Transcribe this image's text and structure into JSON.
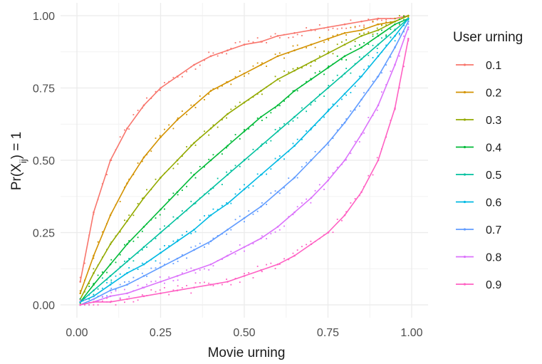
{
  "chart_data": {
    "type": "line",
    "xlabel": "Movie urning",
    "ylabel": "Pr(X",
    "ylabel_sub": "ij",
    "ylabel_suffix": ") = 1",
    "xlim": [
      0,
      1
    ],
    "ylim": [
      0,
      1
    ],
    "x_ticks": [
      0,
      0.25,
      0.5,
      0.75,
      1.0
    ],
    "x_tick_labels": [
      "0.00",
      "0.25",
      "0.50",
      "0.75",
      "1.00"
    ],
    "y_ticks": [
      0,
      0.25,
      0.5,
      0.75,
      1.0
    ],
    "y_tick_labels": [
      "0.00",
      "0.25",
      "0.50",
      "0.75",
      "1.00"
    ],
    "grid": true,
    "legend": {
      "title": "User urning",
      "position": "right"
    },
    "x": [
      0.01,
      0.05,
      0.1,
      0.15,
      0.2,
      0.25,
      0.3,
      0.35,
      0.4,
      0.45,
      0.5,
      0.55,
      0.6,
      0.65,
      0.7,
      0.75,
      0.8,
      0.85,
      0.9,
      0.95,
      0.99
    ],
    "series": [
      {
        "name": "0.1",
        "color": "#F8766D",
        "values": [
          0.08,
          0.32,
          0.5,
          0.61,
          0.69,
          0.75,
          0.79,
          0.83,
          0.86,
          0.88,
          0.9,
          0.91,
          0.93,
          0.94,
          0.95,
          0.96,
          0.97,
          0.98,
          0.99,
          0.99,
          1.0
        ]
      },
      {
        "name": "0.2",
        "color": "#D39200",
        "values": [
          0.04,
          0.17,
          0.31,
          0.42,
          0.51,
          0.58,
          0.64,
          0.69,
          0.74,
          0.77,
          0.8,
          0.83,
          0.86,
          0.88,
          0.9,
          0.92,
          0.94,
          0.95,
          0.97,
          0.98,
          1.0
        ]
      },
      {
        "name": "0.3",
        "color": "#93AA00",
        "values": [
          0.02,
          0.11,
          0.21,
          0.29,
          0.37,
          0.44,
          0.5,
          0.56,
          0.61,
          0.66,
          0.7,
          0.74,
          0.78,
          0.81,
          0.84,
          0.87,
          0.9,
          0.93,
          0.95,
          0.98,
          1.0
        ]
      },
      {
        "name": "0.4",
        "color": "#00BA38",
        "values": [
          0.01,
          0.07,
          0.14,
          0.21,
          0.27,
          0.33,
          0.39,
          0.45,
          0.5,
          0.55,
          0.6,
          0.65,
          0.69,
          0.74,
          0.78,
          0.82,
          0.86,
          0.89,
          0.93,
          0.97,
          0.99
        ]
      },
      {
        "name": "0.5",
        "color": "#00C19F",
        "values": [
          0.01,
          0.05,
          0.1,
          0.15,
          0.2,
          0.25,
          0.3,
          0.35,
          0.4,
          0.45,
          0.5,
          0.55,
          0.6,
          0.65,
          0.7,
          0.75,
          0.8,
          0.85,
          0.9,
          0.95,
          0.99
        ]
      },
      {
        "name": "0.6",
        "color": "#00B9E3",
        "values": [
          0.01,
          0.03,
          0.07,
          0.11,
          0.14,
          0.18,
          0.22,
          0.26,
          0.31,
          0.35,
          0.4,
          0.45,
          0.5,
          0.55,
          0.61,
          0.67,
          0.73,
          0.79,
          0.86,
          0.93,
          0.99
        ]
      },
      {
        "name": "0.7",
        "color": "#619CFF",
        "values": [
          0.0,
          0.02,
          0.05,
          0.07,
          0.1,
          0.13,
          0.16,
          0.19,
          0.22,
          0.26,
          0.3,
          0.34,
          0.39,
          0.44,
          0.5,
          0.56,
          0.63,
          0.71,
          0.79,
          0.89,
          0.98
        ]
      },
      {
        "name": "0.8",
        "color": "#DB72FB",
        "values": [
          0.0,
          0.01,
          0.03,
          0.04,
          0.06,
          0.08,
          0.1,
          0.12,
          0.14,
          0.17,
          0.2,
          0.23,
          0.27,
          0.32,
          0.37,
          0.43,
          0.5,
          0.59,
          0.69,
          0.83,
          0.96
        ]
      },
      {
        "name": "0.9",
        "color": "#FF61C3",
        "values": [
          0.0,
          0.01,
          0.01,
          0.02,
          0.03,
          0.04,
          0.05,
          0.06,
          0.07,
          0.08,
          0.1,
          0.12,
          0.14,
          0.17,
          0.21,
          0.25,
          0.31,
          0.39,
          0.5,
          0.68,
          0.92
        ]
      }
    ]
  }
}
